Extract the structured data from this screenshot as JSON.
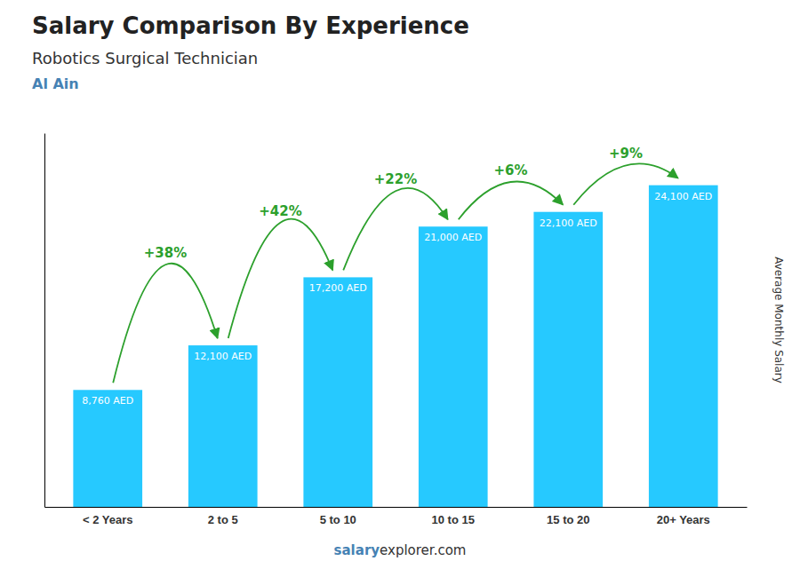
{
  "chart_data": {
    "type": "bar",
    "title": "Salary Comparison By Experience",
    "subtitle": "Robotics Surgical Technician",
    "location": "Al Ain",
    "y_label": "Average Monthly Salary",
    "footer": [
      "salary",
      "explorer.com"
    ],
    "categories": [
      "< 2 Years",
      "2 to 5",
      "5 to 10",
      "10 to 15",
      "15 to 20",
      "20+ Years"
    ],
    "values": [
      8760,
      12100,
      17200,
      21000,
      22100,
      24100
    ],
    "value_labels": [
      "8,760 AED",
      "12,100 AED",
      "17,200 AED",
      "21,000 AED",
      "22,100 AED",
      "24,100 AED"
    ],
    "change_labels": [
      null,
      "+38%",
      "+42%",
      "+22%",
      "+6%",
      "+9%"
    ],
    "color": "#00BFFF",
    "ylim": [
      0,
      28000
    ],
    "grid": false,
    "data_labels": true,
    "tick_labels": "x"
  }
}
